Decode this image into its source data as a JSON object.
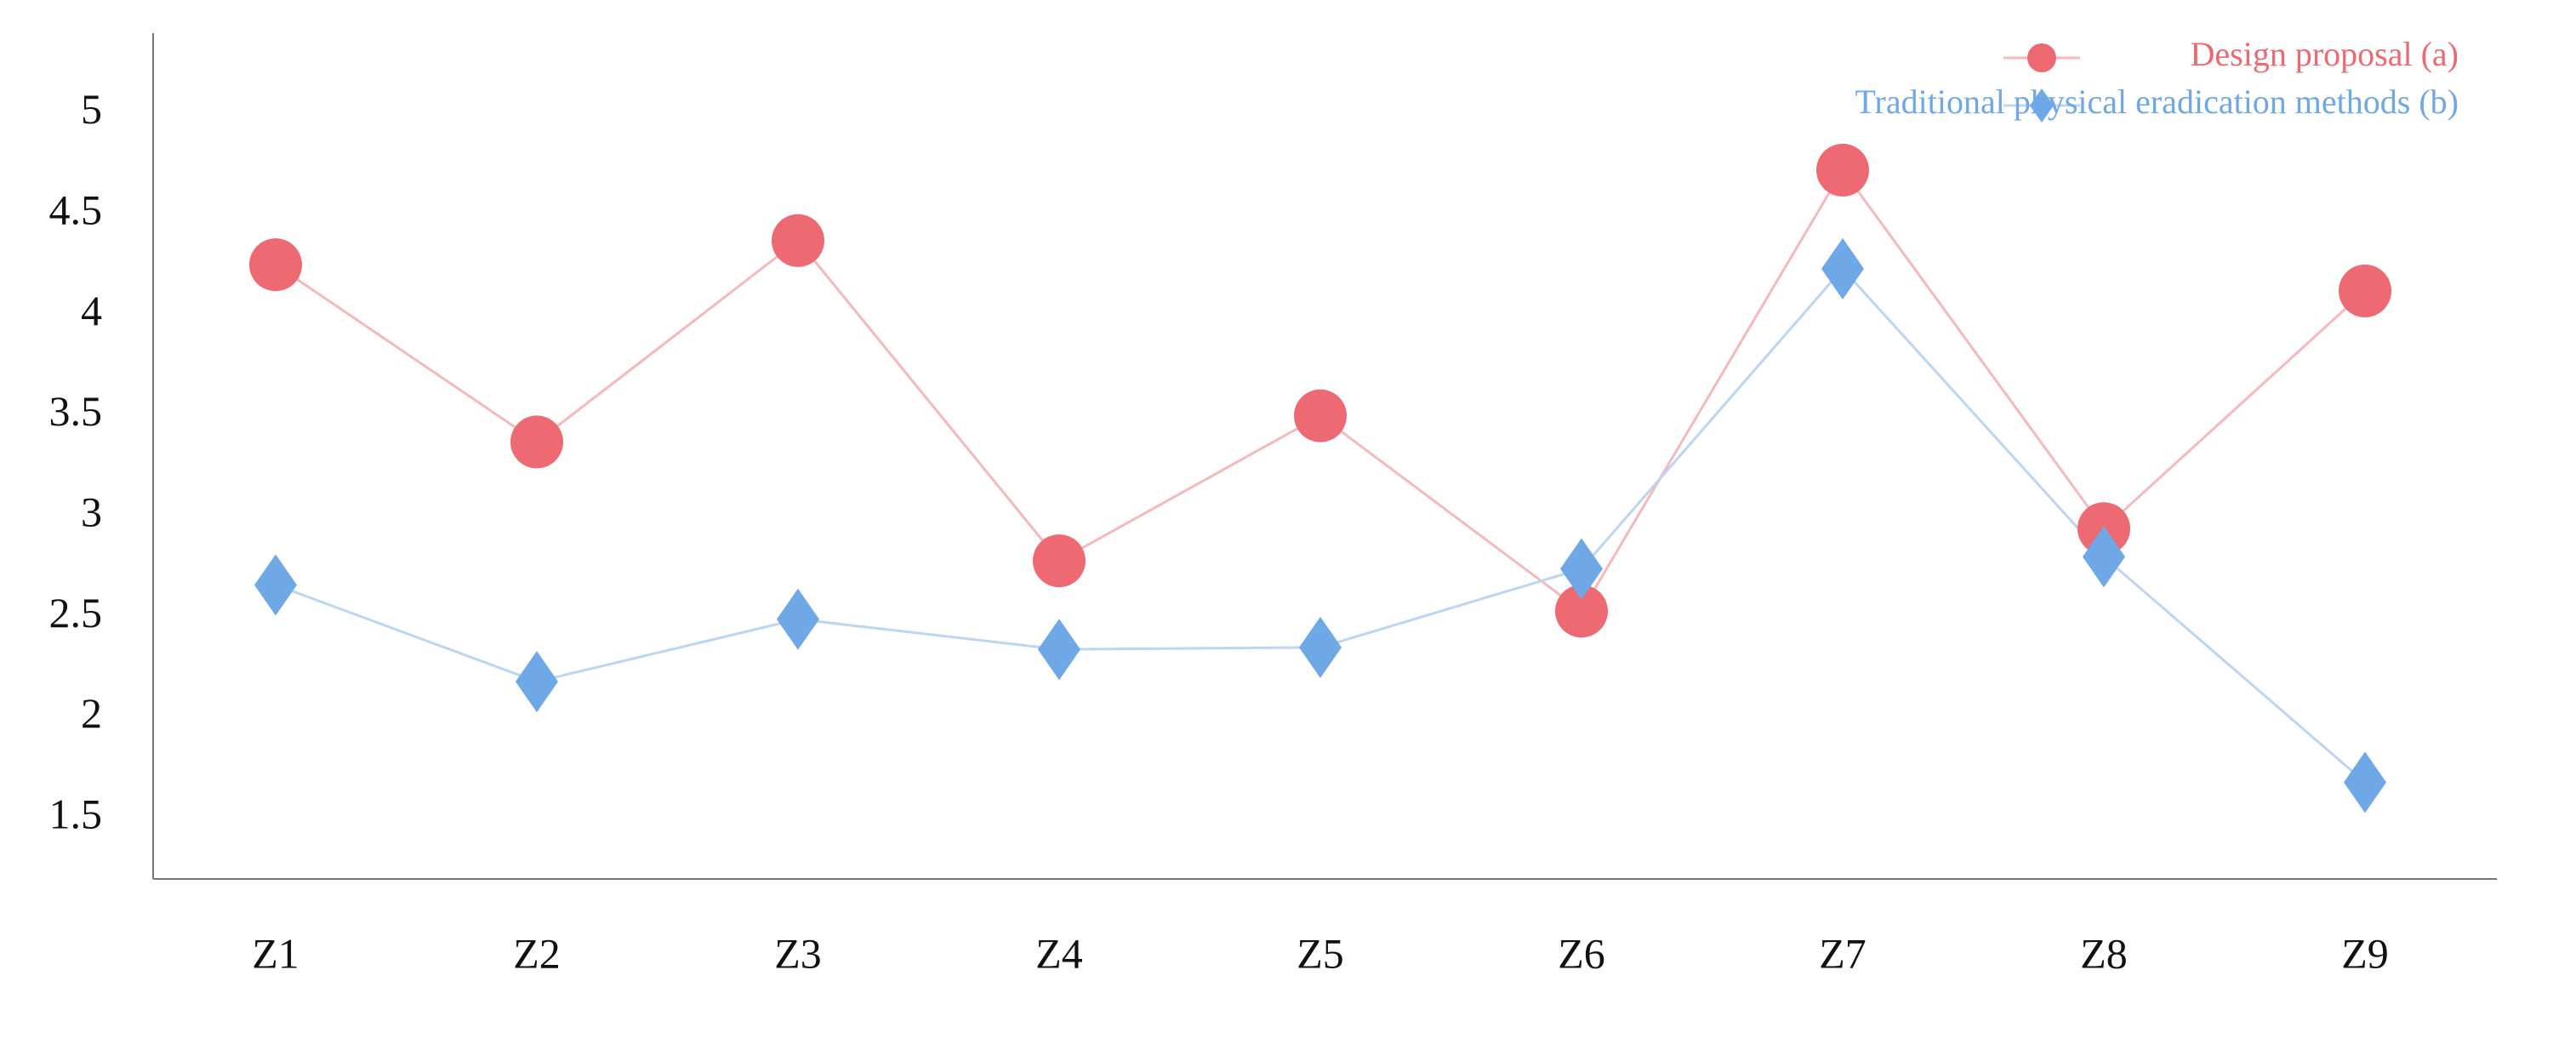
{
  "chart_data": {
    "type": "line",
    "categories": [
      "Z1",
      "Z2",
      "Z3",
      "Z4",
      "Z5",
      "Z6",
      "Z7",
      "Z8",
      "Z9"
    ],
    "series": [
      {
        "name": "Design proposal (a)",
        "color": "#ee6a72",
        "line_color": "#f5b9bd",
        "marker": "circle",
        "values": [
          4.25,
          3.37,
          4.37,
          2.78,
          3.5,
          2.53,
          4.72,
          2.94,
          4.12
        ]
      },
      {
        "name": "Traditional physical eradication methods (b)",
        "color": "#6fa8e6",
        "line_color": "#bcd5f1",
        "marker": "diamond",
        "values": [
          2.66,
          2.18,
          2.49,
          2.34,
          2.35,
          2.74,
          4.23,
          2.8,
          1.68
        ]
      }
    ],
    "ylim": [
      1.2,
      5.4
    ],
    "yticks": [
      1.5,
      2,
      2.5,
      3,
      3.5,
      4,
      4.5,
      5
    ],
    "grid": false,
    "legend": "top-right"
  }
}
